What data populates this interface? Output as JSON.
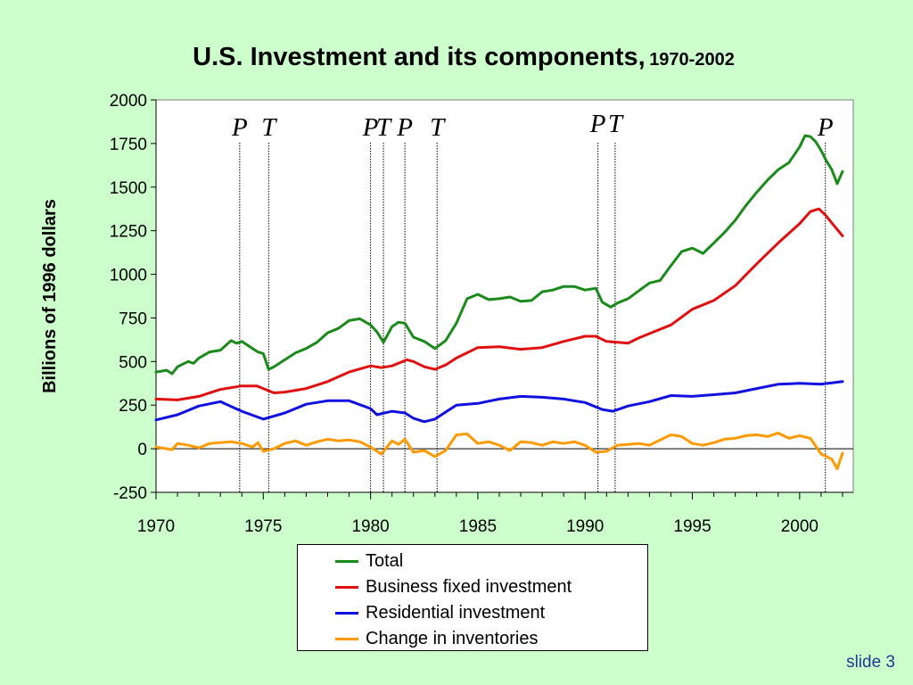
{
  "title": {
    "main": "U.S. Investment and its components,",
    "years": "1970-2002"
  },
  "slide_label": "slide 3",
  "colors": {
    "background": "#ccffcc",
    "plot_background": "#ffffff"
  },
  "chart_data": {
    "type": "line",
    "title": "U.S. Investment and its components, 1970-2002",
    "xlabel": "",
    "ylabel": "Billions of 1996 dollars",
    "xlim": [
      1970,
      2002.5
    ],
    "ylim": [
      -250,
      2000
    ],
    "x_ticks": [
      "1970",
      "1975",
      "1980",
      "1985",
      "1990",
      "1995",
      "2000"
    ],
    "y_ticks": [
      "-250",
      "0",
      "250",
      "500",
      "750",
      "1000",
      "1250",
      "1500",
      "1750",
      "2000"
    ],
    "grid": false,
    "legend_position": "bottom",
    "markers": [
      {
        "label": "P",
        "x": 1973.9
      },
      {
        "label": "T",
        "x": 1975.25
      },
      {
        "label": "P",
        "x": 1980.0
      },
      {
        "label": "T",
        "x": 1980.6
      },
      {
        "label": "P",
        "x": 1981.6
      },
      {
        "label": "T",
        "x": 1983.1
      },
      {
        "label": "P",
        "x": 1990.6
      },
      {
        "label": "T",
        "x": 1991.4
      },
      {
        "label": "P",
        "x": 2001.2
      }
    ],
    "series": [
      {
        "name": "Total",
        "color": "#1a8a1a",
        "points": [
          [
            1970,
            440
          ],
          [
            1970.5,
            450
          ],
          [
            1970.75,
            430
          ],
          [
            1971,
            470
          ],
          [
            1971.5,
            500
          ],
          [
            1971.75,
            490
          ],
          [
            1972,
            520
          ],
          [
            1972.5,
            555
          ],
          [
            1973,
            565
          ],
          [
            1973.5,
            620
          ],
          [
            1973.75,
            605
          ],
          [
            1974,
            615
          ],
          [
            1974.5,
            575
          ],
          [
            1974.75,
            555
          ],
          [
            1975,
            545
          ],
          [
            1975.25,
            455
          ],
          [
            1975.5,
            470
          ],
          [
            1976,
            510
          ],
          [
            1976.5,
            550
          ],
          [
            1977,
            575
          ],
          [
            1977.5,
            610
          ],
          [
            1978,
            665
          ],
          [
            1978.5,
            690
          ],
          [
            1979,
            735
          ],
          [
            1979.5,
            745
          ],
          [
            1980,
            710
          ],
          [
            1980.3,
            670
          ],
          [
            1980.6,
            610
          ],
          [
            1981,
            700
          ],
          [
            1981.3,
            725
          ],
          [
            1981.6,
            720
          ],
          [
            1982,
            640
          ],
          [
            1982.5,
            615
          ],
          [
            1983,
            575
          ],
          [
            1983.5,
            620
          ],
          [
            1984,
            720
          ],
          [
            1984.5,
            860
          ],
          [
            1985,
            885
          ],
          [
            1985.5,
            855
          ],
          [
            1986,
            860
          ],
          [
            1986.5,
            870
          ],
          [
            1987,
            845
          ],
          [
            1987.5,
            850
          ],
          [
            1988,
            900
          ],
          [
            1988.5,
            910
          ],
          [
            1989,
            930
          ],
          [
            1989.5,
            930
          ],
          [
            1990,
            910
          ],
          [
            1990.5,
            920
          ],
          [
            1990.8,
            840
          ],
          [
            1991.2,
            812
          ],
          [
            1991.5,
            835
          ],
          [
            1992,
            860
          ],
          [
            1992.5,
            905
          ],
          [
            1993,
            950
          ],
          [
            1993.5,
            965
          ],
          [
            1994,
            1050
          ],
          [
            1994.5,
            1130
          ],
          [
            1995,
            1150
          ],
          [
            1995.5,
            1120
          ],
          [
            1996,
            1180
          ],
          [
            1996.5,
            1240
          ],
          [
            1997,
            1310
          ],
          [
            1997.5,
            1395
          ],
          [
            1998,
            1470
          ],
          [
            1998.5,
            1540
          ],
          [
            1999,
            1600
          ],
          [
            1999.5,
            1640
          ],
          [
            2000,
            1730
          ],
          [
            2000.25,
            1795
          ],
          [
            2000.5,
            1790
          ],
          [
            2000.75,
            1760
          ],
          [
            2001,
            1710
          ],
          [
            2001.25,
            1650
          ],
          [
            2001.5,
            1600
          ],
          [
            2001.75,
            1520
          ],
          [
            2002,
            1590
          ]
        ]
      },
      {
        "name": "Business fixed investment",
        "color": "#e01010",
        "points": [
          [
            1970,
            285
          ],
          [
            1971,
            280
          ],
          [
            1972,
            300
          ],
          [
            1973,
            340
          ],
          [
            1974,
            360
          ],
          [
            1974.7,
            360
          ],
          [
            1975,
            345
          ],
          [
            1975.5,
            320
          ],
          [
            1976,
            325
          ],
          [
            1977,
            345
          ],
          [
            1978,
            385
          ],
          [
            1979,
            440
          ],
          [
            1980,
            475
          ],
          [
            1980.5,
            465
          ],
          [
            1981,
            475
          ],
          [
            1981.7,
            510
          ],
          [
            1982,
            500
          ],
          [
            1982.5,
            470
          ],
          [
            1983,
            455
          ],
          [
            1983.5,
            480
          ],
          [
            1984,
            520
          ],
          [
            1985,
            580
          ],
          [
            1986,
            585
          ],
          [
            1987,
            570
          ],
          [
            1988,
            580
          ],
          [
            1989,
            615
          ],
          [
            1990,
            645
          ],
          [
            1990.5,
            645
          ],
          [
            1991,
            615
          ],
          [
            1992,
            605
          ],
          [
            1992.5,
            635
          ],
          [
            1993,
            660
          ],
          [
            1994,
            710
          ],
          [
            1995,
            800
          ],
          [
            1996,
            850
          ],
          [
            1997,
            935
          ],
          [
            1998,
            1060
          ],
          [
            1999,
            1180
          ],
          [
            2000,
            1290
          ],
          [
            2000.5,
            1360
          ],
          [
            2000.9,
            1375
          ],
          [
            2001.2,
            1340
          ],
          [
            2001.6,
            1280
          ],
          [
            2002,
            1220
          ]
        ]
      },
      {
        "name": "Residential investment",
        "color": "#1010e0",
        "points": [
          [
            1970,
            165
          ],
          [
            1971,
            195
          ],
          [
            1972,
            245
          ],
          [
            1973,
            270
          ],
          [
            1974,
            215
          ],
          [
            1975,
            170
          ],
          [
            1976,
            205
          ],
          [
            1977,
            255
          ],
          [
            1978,
            275
          ],
          [
            1979,
            275
          ],
          [
            1980,
            230
          ],
          [
            1980.3,
            195
          ],
          [
            1981,
            215
          ],
          [
            1981.6,
            205
          ],
          [
            1982,
            175
          ],
          [
            1982.5,
            155
          ],
          [
            1983,
            170
          ],
          [
            1983.5,
            210
          ],
          [
            1984,
            250
          ],
          [
            1985,
            260
          ],
          [
            1986,
            285
          ],
          [
            1987,
            300
          ],
          [
            1988,
            295
          ],
          [
            1989,
            285
          ],
          [
            1990,
            265
          ],
          [
            1990.8,
            225
          ],
          [
            1991.3,
            215
          ],
          [
            1992,
            245
          ],
          [
            1993,
            270
          ],
          [
            1994,
            305
          ],
          [
            1995,
            300
          ],
          [
            1996,
            310
          ],
          [
            1997,
            320
          ],
          [
            1998,
            345
          ],
          [
            1999,
            370
          ],
          [
            2000,
            375
          ],
          [
            2001,
            370
          ],
          [
            2002,
            385
          ]
        ]
      },
      {
        "name": "Change in inventories",
        "color": "#ff9900",
        "points": [
          [
            1970,
            10
          ],
          [
            1970.75,
            -5
          ],
          [
            1971,
            30
          ],
          [
            1971.5,
            20
          ],
          [
            1972,
            5
          ],
          [
            1972.5,
            30
          ],
          [
            1973,
            35
          ],
          [
            1973.5,
            40
          ],
          [
            1974,
            30
          ],
          [
            1974.5,
            10
          ],
          [
            1974.75,
            35
          ],
          [
            1975,
            -15
          ],
          [
            1975.5,
            0
          ],
          [
            1976,
            30
          ],
          [
            1976.5,
            45
          ],
          [
            1977,
            20
          ],
          [
            1977.5,
            40
          ],
          [
            1978,
            55
          ],
          [
            1978.5,
            45
          ],
          [
            1979,
            50
          ],
          [
            1979.5,
            40
          ],
          [
            1980,
            10
          ],
          [
            1980.5,
            -30
          ],
          [
            1981,
            45
          ],
          [
            1981.3,
            25
          ],
          [
            1981.6,
            55
          ],
          [
            1982,
            -20
          ],
          [
            1982.5,
            -10
          ],
          [
            1983,
            -45
          ],
          [
            1983.5,
            -10
          ],
          [
            1984,
            80
          ],
          [
            1984.5,
            85
          ],
          [
            1985,
            30
          ],
          [
            1985.5,
            40
          ],
          [
            1986,
            20
          ],
          [
            1986.5,
            -10
          ],
          [
            1987,
            40
          ],
          [
            1987.5,
            35
          ],
          [
            1988,
            20
          ],
          [
            1988.5,
            40
          ],
          [
            1989,
            30
          ],
          [
            1989.5,
            40
          ],
          [
            1990,
            20
          ],
          [
            1990.5,
            -20
          ],
          [
            1991,
            -15
          ],
          [
            1991.5,
            20
          ],
          [
            1992,
            25
          ],
          [
            1992.5,
            30
          ],
          [
            1993,
            20
          ],
          [
            1993.5,
            50
          ],
          [
            1994,
            80
          ],
          [
            1994.5,
            70
          ],
          [
            1995,
            30
          ],
          [
            1995.5,
            20
          ],
          [
            1996,
            35
          ],
          [
            1996.5,
            55
          ],
          [
            1997,
            60
          ],
          [
            1997.5,
            75
          ],
          [
            1998,
            80
          ],
          [
            1998.5,
            70
          ],
          [
            1999,
            90
          ],
          [
            1999.5,
            60
          ],
          [
            2000,
            75
          ],
          [
            2000.5,
            60
          ],
          [
            2001,
            -30
          ],
          [
            2001.5,
            -60
          ],
          [
            2001.75,
            -115
          ],
          [
            2002,
            -25
          ]
        ]
      }
    ]
  }
}
